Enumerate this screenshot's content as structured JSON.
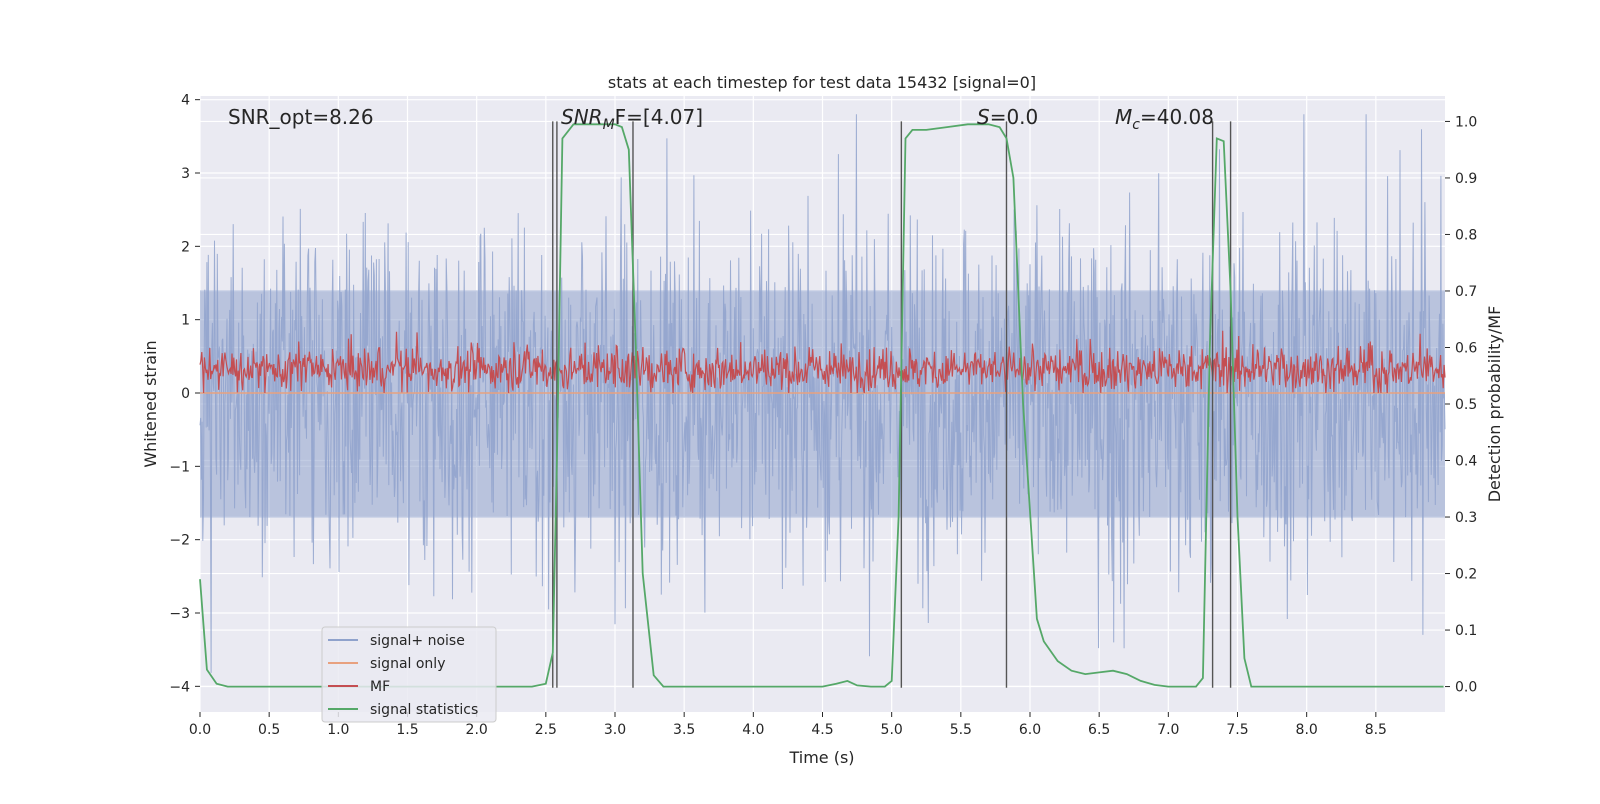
{
  "chart_data": {
    "type": "line",
    "title": "stats at each timestep for test data 15432 [signal=0]",
    "xlabel": "Time (s)",
    "ylabel_left": "Whitened strain",
    "ylabel_right": "Detection probability/MF",
    "xlim": [
      0.0,
      9.0
    ],
    "ylim_left": [
      -4.35,
      4.05
    ],
    "ylim_right": [
      -0.045,
      1.045
    ],
    "x_ticks": [
      "0.0",
      "0.5",
      "1.0",
      "1.5",
      "2.0",
      "2.5",
      "3.0",
      "3.5",
      "4.0",
      "4.5",
      "5.0",
      "5.5",
      "6.0",
      "6.5",
      "7.0",
      "7.5",
      "8.0",
      "8.5"
    ],
    "y_ticks_left": [
      "4",
      "3",
      "2",
      "1",
      "0",
      "−1",
      "−2",
      "−3",
      "−4"
    ],
    "y_ticks_right": [
      "1.0",
      "0.9",
      "0.8",
      "0.7",
      "0.6",
      "0.5",
      "0.4",
      "0.3",
      "0.2",
      "0.1",
      "0.0"
    ],
    "grid": true,
    "legend_position": "lower-left",
    "annotations": {
      "snr_opt": "SNR_opt=8.26",
      "snr_mf_sym": "SNR",
      "snr_mf_sub": "M",
      "snr_mf_tail": "F=[4.07]",
      "s_sym": "S",
      "s_tail": "=0.0",
      "mc_sym": "M",
      "mc_sub": "c",
      "mc_tail": "=40.08"
    },
    "series": [
      {
        "name": "signal+ noise",
        "color": "#8fa2cc",
        "axis": "left",
        "description_level": "noise amplitude approx ±2, spikes to ±3.5"
      },
      {
        "name": "signal only",
        "color": "#e8a17f",
        "axis": "left",
        "values_constant": 0.0
      },
      {
        "name": "MF",
        "color": "#c44e52",
        "axis": "left",
        "range": [
          0.0,
          0.85
        ]
      },
      {
        "name": "signal statistics",
        "color": "#55a868",
        "axis": "right",
        "x": [
          0.0,
          0.05,
          0.12,
          0.2,
          0.3,
          0.5,
          1.0,
          1.5,
          2.0,
          2.4,
          2.5,
          2.55,
          2.58,
          2.62,
          2.7,
          2.8,
          2.9,
          3.0,
          3.05,
          3.1,
          3.15,
          3.2,
          3.28,
          3.35,
          3.5,
          4.0,
          4.5,
          4.6,
          4.68,
          4.75,
          4.85,
          4.95,
          5.0,
          5.05,
          5.1,
          5.15,
          5.25,
          5.4,
          5.55,
          5.7,
          5.78,
          5.83,
          5.88,
          5.95,
          6.05,
          6.1,
          6.2,
          6.3,
          6.4,
          6.5,
          6.6,
          6.7,
          6.8,
          6.9,
          7.0,
          7.2,
          7.25,
          7.3,
          7.35,
          7.4,
          7.45,
          7.5,
          7.55,
          7.6,
          7.7,
          8.0,
          8.5,
          8.99
        ],
        "y": [
          0.19,
          0.03,
          0.005,
          0.0,
          0.0,
          0.0,
          0.0,
          0.0,
          0.0,
          0.0,
          0.005,
          0.06,
          0.4,
          0.97,
          0.995,
          0.995,
          0.995,
          0.995,
          0.99,
          0.95,
          0.6,
          0.2,
          0.02,
          0.0,
          0.0,
          0.0,
          0.0,
          0.005,
          0.01,
          0.002,
          0.0,
          0.0,
          0.01,
          0.3,
          0.97,
          0.985,
          0.985,
          0.99,
          0.995,
          0.995,
          0.99,
          0.97,
          0.9,
          0.5,
          0.12,
          0.08,
          0.045,
          0.028,
          0.022,
          0.025,
          0.028,
          0.022,
          0.01,
          0.003,
          0.0,
          0.0,
          0.015,
          0.6,
          0.97,
          0.965,
          0.7,
          0.3,
          0.05,
          0.0,
          0.0,
          0.0,
          0.0,
          0.0
        ]
      }
    ],
    "vertical_lines_x": [
      2.55,
      2.58,
      3.13,
      5.07,
      5.83,
      7.32,
      7.45
    ]
  }
}
